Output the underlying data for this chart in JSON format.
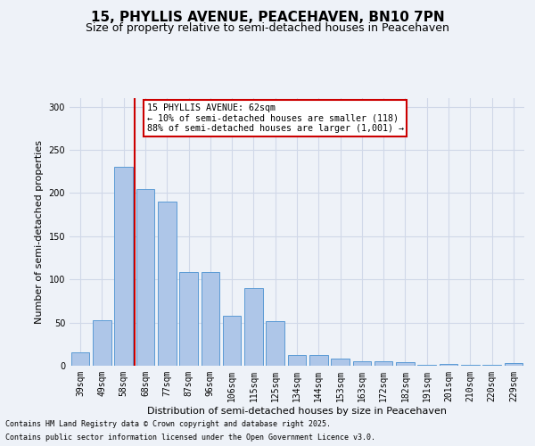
{
  "title": "15, PHYLLIS AVENUE, PEACEHAVEN, BN10 7PN",
  "subtitle": "Size of property relative to semi-detached houses in Peacehaven",
  "xlabel": "Distribution of semi-detached houses by size in Peacehaven",
  "ylabel": "Number of semi-detached properties",
  "categories": [
    "39sqm",
    "49sqm",
    "58sqm",
    "68sqm",
    "77sqm",
    "87sqm",
    "96sqm",
    "106sqm",
    "115sqm",
    "125sqm",
    "134sqm",
    "144sqm",
    "153sqm",
    "163sqm",
    "172sqm",
    "182sqm",
    "191sqm",
    "201sqm",
    "210sqm",
    "220sqm",
    "229sqm"
  ],
  "values": [
    16,
    53,
    230,
    205,
    190,
    108,
    109,
    58,
    90,
    52,
    12,
    12,
    8,
    5,
    5,
    4,
    1,
    2,
    1,
    1,
    3
  ],
  "bar_color": "#aec6e8",
  "bar_edge_color": "#5b9bd5",
  "grid_color": "#d0d8e8",
  "background_color": "#eef2f8",
  "property_label": "15 PHYLLIS AVENUE: 62sqm",
  "annotation_line1": "← 10% of semi-detached houses are smaller (118)",
  "annotation_line2": "88% of semi-detached houses are larger (1,001) →",
  "vline_color": "#cc0000",
  "annotation_box_color": "#cc0000",
  "footnote1": "Contains HM Land Registry data © Crown copyright and database right 2025.",
  "footnote2": "Contains public sector information licensed under the Open Government Licence v3.0.",
  "ylim": [
    0,
    310
  ],
  "title_fontsize": 11,
  "subtitle_fontsize": 9,
  "axis_label_fontsize": 8,
  "tick_fontsize": 7,
  "vline_x_index": 2.5
}
